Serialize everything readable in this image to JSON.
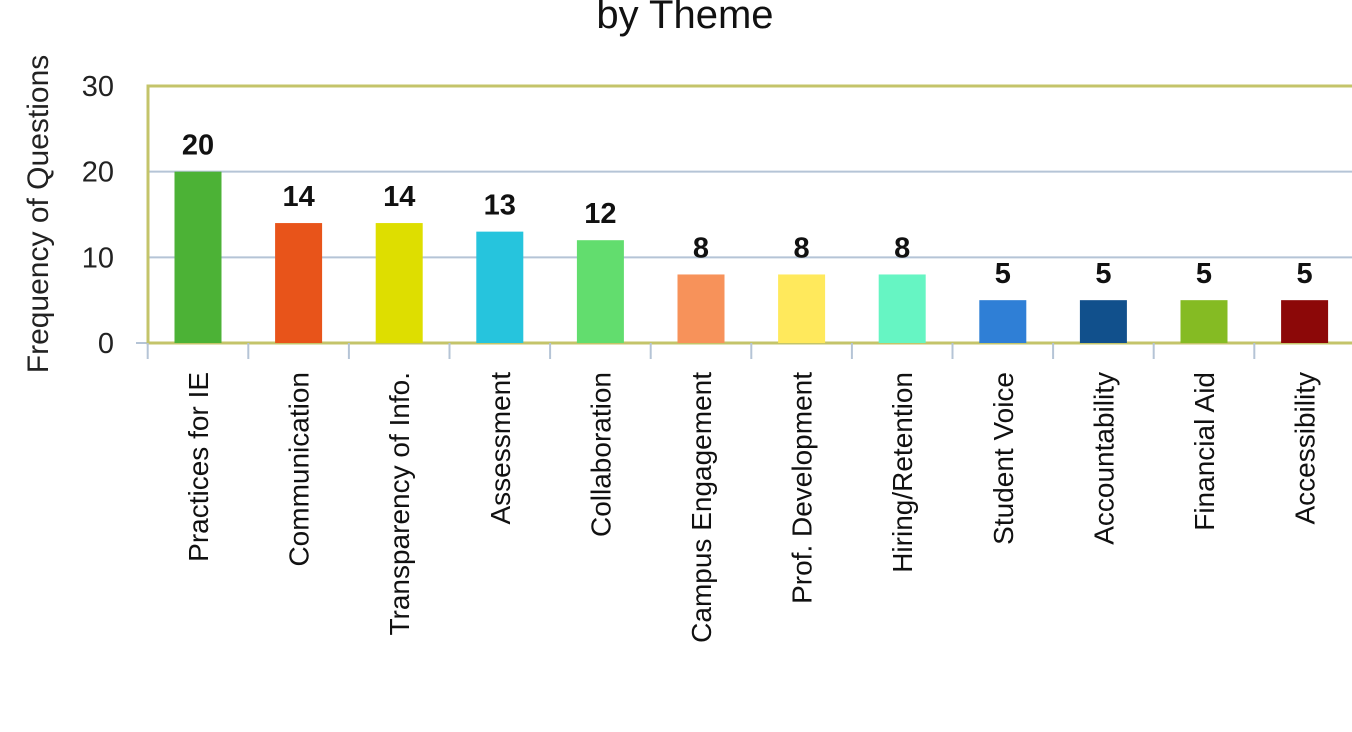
{
  "chart_data": {
    "type": "bar",
    "title": "by Theme",
    "ylabel": "Frequency of Questions",
    "xlabel": "",
    "ylim": [
      0,
      30
    ],
    "yticks": [
      "0",
      "10",
      "20",
      "30"
    ],
    "grid": true,
    "legend": "none",
    "categories": [
      "Practices for IE",
      "Communication",
      "Transparency of Info.",
      "Assessment",
      "Collaboration",
      "Campus Engagement",
      "Prof. Development",
      "Hiring/Retention",
      "Student Voice",
      "Accountability",
      "Financial Aid",
      "Accessibility"
    ],
    "values": [
      20,
      14,
      14,
      13,
      12,
      8,
      8,
      8,
      5,
      5,
      5,
      5
    ],
    "data_labels": [
      "20",
      "14",
      "14",
      "13",
      "12",
      "8",
      "8",
      "8",
      "5",
      "5",
      "5",
      "5"
    ],
    "colors": [
      "#4cb236",
      "#e8541a",
      "#dede00",
      "#26c4dd",
      "#62dd6e",
      "#f7925a",
      "#ffe95c",
      "#66f5c3",
      "#2f7fd6",
      "#11508c",
      "#85bb23",
      "#8c0808"
    ],
    "frame_color": "#c4c46a",
    "grid_color": "#b5c4d6"
  }
}
